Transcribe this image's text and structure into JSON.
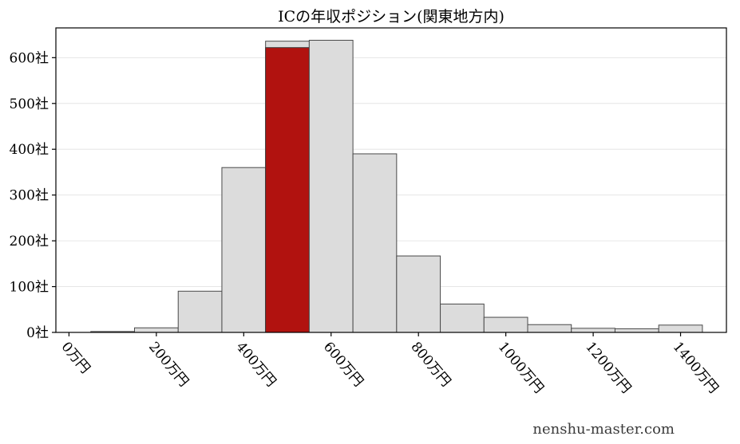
{
  "title": "ICの年収ポジション(関東地方内)",
  "watermark": "nenshu-master.com",
  "chart_data": {
    "type": "bar",
    "title": "ICの年収ポジション(関東地方内)",
    "xlabel": "",
    "ylabel": "",
    "x_tick_labels": [
      "0万円",
      "200万円",
      "400万円",
      "600万円",
      "800万円",
      "1000万円",
      "1200万円",
      "1400万円"
    ],
    "x_tick_values": [
      0,
      200,
      400,
      600,
      800,
      1000,
      1200,
      1400
    ],
    "y_tick_labels": [
      "0社",
      "100社",
      "200社",
      "300社",
      "400社",
      "500社",
      "600社"
    ],
    "y_tick_values": [
      0,
      100,
      200,
      300,
      400,
      500,
      600
    ],
    "xlim": [
      -30,
      1505
    ],
    "ylim": [
      0,
      665
    ],
    "grid": true,
    "legend": false,
    "bin_width": 100,
    "bins": [
      {
        "start": 50,
        "end": 150,
        "value": 2,
        "highlight": false
      },
      {
        "start": 150,
        "end": 250,
        "value": 10,
        "highlight": false
      },
      {
        "start": 250,
        "end": 350,
        "value": 90,
        "highlight": false
      },
      {
        "start": 350,
        "end": 450,
        "value": 360,
        "highlight": false
      },
      {
        "start": 450,
        "end": 550,
        "value": 622,
        "highlight": true,
        "under_value": 636
      },
      {
        "start": 550,
        "end": 650,
        "value": 638,
        "highlight": false
      },
      {
        "start": 650,
        "end": 750,
        "value": 390,
        "highlight": false
      },
      {
        "start": 750,
        "end": 850,
        "value": 167,
        "highlight": false
      },
      {
        "start": 850,
        "end": 950,
        "value": 62,
        "highlight": false
      },
      {
        "start": 950,
        "end": 1050,
        "value": 33,
        "highlight": false
      },
      {
        "start": 1050,
        "end": 1150,
        "value": 17,
        "highlight": false
      },
      {
        "start": 1150,
        "end": 1250,
        "value": 9,
        "highlight": false
      },
      {
        "start": 1250,
        "end": 1350,
        "value": 8,
        "highlight": false
      },
      {
        "start": 1350,
        "end": 1450,
        "value": 16,
        "highlight": false
      }
    ],
    "colors": {
      "bar_fill": "#dcdcdc",
      "bar_edge": "#4a4a4a",
      "highlight_fill": "#b1120f",
      "highlight_edge": "#3a3a3a",
      "grid": "#e6e6e6",
      "axis": "#000000",
      "background": "#ffffff"
    }
  }
}
